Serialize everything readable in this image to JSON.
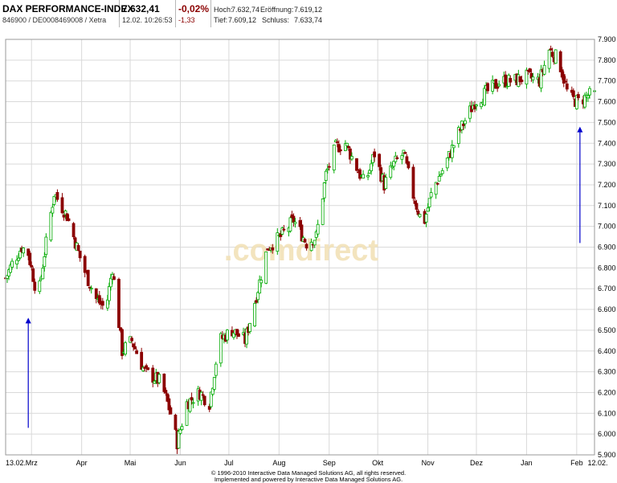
{
  "header": {
    "name": "DAX PERFORMANCE-INDEX",
    "ids": "846900 / DE0008469008 / Xetra",
    "price": "7.632,41",
    "datetime": "12.02. 10:26:53",
    "change_pct": "-0,02%",
    "change_abs": "-1,33",
    "high_label": "Hoch:",
    "high_value": "7.632,74",
    "open_label": "Eröffnung:",
    "open_value": "7.619,12",
    "low_label": "Tief:",
    "low_value": "7.609,12",
    "close_label": "Schluss:",
    "close_value": "7.633,74"
  },
  "watermark": ".comdirect",
  "footer": {
    "line1": "© 1996-2010 Interactive Data Managed Solutions AG, all rights reserved.",
    "line2": "Implemented and powered by Interactive Data Managed Solutions AG."
  },
  "colors": {
    "up": "#00aa00",
    "down": "#8b0000",
    "grid": "#d9d9d9",
    "arrow": "#0000cc",
    "change_negative": "#8b0000"
  },
  "chart_data": {
    "type": "candlestick",
    "title": "DAX PERFORMANCE-INDEX",
    "y_ticks": [
      5900,
      6000,
      6100,
      6200,
      6300,
      6400,
      6500,
      6600,
      6700,
      6800,
      6900,
      7000,
      7100,
      7200,
      7300,
      7400,
      7500,
      7600,
      7700,
      7800,
      7900
    ],
    "y_tick_labels": [
      "5.900",
      "6.000",
      "6.100",
      "6.200",
      "6.300",
      "6.400",
      "6.500",
      "6.600",
      "6.700",
      "6.800",
      "6.900",
      "7.000",
      "7.100",
      "7.200",
      "7.300",
      "7.400",
      "7.500",
      "7.600",
      "7.700",
      "7.800",
      "7.900"
    ],
    "ylim": [
      5900,
      7900
    ],
    "y_axis_side": "right",
    "grid": true,
    "x_ticks": [
      {
        "label": "13.02.",
        "day": 0
      },
      {
        "label": "Mrz",
        "day": 16
      },
      {
        "label": "Apr",
        "day": 47
      },
      {
        "label": "Mai",
        "day": 77
      },
      {
        "label": "Jun",
        "day": 108
      },
      {
        "label": "Jul",
        "day": 138
      },
      {
        "label": "Aug",
        "day": 169
      },
      {
        "label": "Sep",
        "day": 200
      },
      {
        "label": "Okt",
        "day": 230
      },
      {
        "label": "Nov",
        "day": 261
      },
      {
        "label": "Dez",
        "day": 291
      },
      {
        "label": "Jan",
        "day": 322
      },
      {
        "label": "Feb",
        "day": 353
      },
      {
        "label": "12.02.",
        "day": 364
      }
    ],
    "x_range_days": [
      0,
      364
    ],
    "close_anchors": [
      {
        "day": 0,
        "close": 6750
      },
      {
        "day": 4,
        "close": 6820
      },
      {
        "day": 10,
        "close": 6900
      },
      {
        "day": 14,
        "close": 6870
      },
      {
        "day": 20,
        "close": 6650
      },
      {
        "day": 24,
        "close": 6870
      },
      {
        "day": 30,
        "close": 7160
      },
      {
        "day": 38,
        "close": 7050
      },
      {
        "day": 42,
        "close": 6950
      },
      {
        "day": 48,
        "close": 6800
      },
      {
        "day": 56,
        "close": 6650
      },
      {
        "day": 62,
        "close": 6600
      },
      {
        "day": 66,
        "close": 6800
      },
      {
        "day": 72,
        "close": 6400
      },
      {
        "day": 78,
        "close": 6450
      },
      {
        "day": 86,
        "close": 6300
      },
      {
        "day": 96,
        "close": 6250
      },
      {
        "day": 102,
        "close": 6100
      },
      {
        "day": 106,
        "close": 5960
      },
      {
        "day": 112,
        "close": 6150
      },
      {
        "day": 120,
        "close": 6200
      },
      {
        "day": 126,
        "close": 6150
      },
      {
        "day": 132,
        "close": 6450
      },
      {
        "day": 140,
        "close": 6500
      },
      {
        "day": 148,
        "close": 6450
      },
      {
        "day": 156,
        "close": 6700
      },
      {
        "day": 162,
        "close": 6900
      },
      {
        "day": 170,
        "close": 6950
      },
      {
        "day": 178,
        "close": 7030
      },
      {
        "day": 186,
        "close": 6920
      },
      {
        "day": 192,
        "close": 6950
      },
      {
        "day": 198,
        "close": 7250
      },
      {
        "day": 204,
        "close": 7380
      },
      {
        "day": 210,
        "close": 7400
      },
      {
        "day": 216,
        "close": 7300
      },
      {
        "day": 222,
        "close": 7200
      },
      {
        "day": 228,
        "close": 7350
      },
      {
        "day": 234,
        "close": 7200
      },
      {
        "day": 240,
        "close": 7300
      },
      {
        "day": 246,
        "close": 7350
      },
      {
        "day": 252,
        "close": 7150
      },
      {
        "day": 258,
        "close": 7000
      },
      {
        "day": 264,
        "close": 7180
      },
      {
        "day": 272,
        "close": 7300
      },
      {
        "day": 280,
        "close": 7450
      },
      {
        "day": 290,
        "close": 7600
      },
      {
        "day": 298,
        "close": 7650
      },
      {
        "day": 306,
        "close": 7700
      },
      {
        "day": 314,
        "close": 7700
      },
      {
        "day": 322,
        "close": 7720
      },
      {
        "day": 330,
        "close": 7700
      },
      {
        "day": 336,
        "close": 7850
      },
      {
        "day": 342,
        "close": 7800
      },
      {
        "day": 348,
        "close": 7620
      },
      {
        "day": 354,
        "close": 7600
      },
      {
        "day": 360,
        "close": 7630
      },
      {
        "day": 364,
        "close": 7632
      }
    ],
    "annotations": [
      {
        "type": "arrow",
        "day": 14,
        "from": 6030,
        "to": 6560
      },
      {
        "type": "arrow",
        "day": 355,
        "from": 6920,
        "to": 7480
      }
    ]
  }
}
